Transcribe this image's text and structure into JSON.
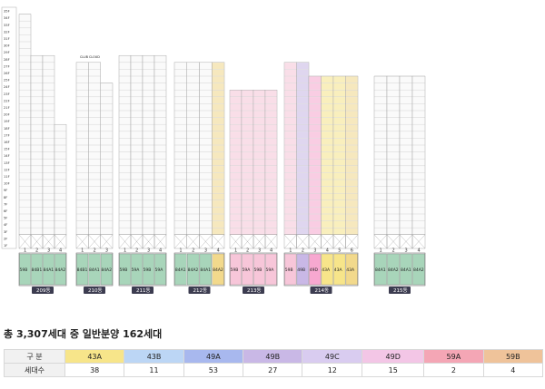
{
  "floors": [
    "35F",
    "34F",
    "33F",
    "32F",
    "31F",
    "30F",
    "29F",
    "28F",
    "27F",
    "26F",
    "25F",
    "24F",
    "23F",
    "22F",
    "21F",
    "20F",
    "19F",
    "18F",
    "17F",
    "16F",
    "15F",
    "14F",
    "13F",
    "12F",
    "11F",
    "10F",
    "9F",
    "8F",
    "7F",
    "6F",
    "5F",
    "4F",
    "3F",
    "2F",
    "1F"
  ],
  "club_label": "CLUB CLOUD",
  "buildings": [
    {
      "name": "209동",
      "color": "#a8d5ba",
      "units": [
        {
          "no": "1",
          "type": "59B",
          "cell": "#a8d5ba",
          "top": 34
        },
        {
          "no": "2",
          "type": "84B1",
          "cell": "#a8d5ba",
          "top": 28
        },
        {
          "no": "3",
          "type": "84A1",
          "cell": "#a8d5ba",
          "top": 28
        },
        {
          "no": "4",
          "type": "84A2",
          "cell": "#a8d5ba",
          "top": 18
        }
      ]
    },
    {
      "name": "210동",
      "color": "#a8d5ba",
      "units": [
        {
          "no": "1",
          "type": "84B1",
          "cell": "#a8d5ba",
          "top": 27
        },
        {
          "no": "2",
          "type": "84A1",
          "cell": "#a8d5ba",
          "top": 27
        },
        {
          "no": "3",
          "type": "84A2",
          "cell": "#a8d5ba",
          "top": 24
        }
      ]
    },
    {
      "name": "211동",
      "color": "#a8d5ba",
      "units": [
        {
          "no": "1",
          "type": "59B",
          "cell": "#a8d5ba",
          "top": 28
        },
        {
          "no": "2",
          "type": "59A",
          "cell": "#a8d5ba",
          "top": 28
        },
        {
          "no": "3",
          "type": "59B",
          "cell": "#a8d5ba",
          "top": 28
        },
        {
          "no": "4",
          "type": "59A",
          "cell": "#a8d5ba",
          "top": 28
        }
      ]
    },
    {
      "name": "212동",
      "color": "#a8d5ba",
      "units": [
        {
          "no": "1",
          "type": "84A1",
          "cell": "#a8d5ba",
          "top": 27
        },
        {
          "no": "2",
          "type": "84A2",
          "cell": "#a8d5ba",
          "top": 27
        },
        {
          "no": "3",
          "type": "84A1",
          "cell": "#a8d5ba",
          "top": 27
        },
        {
          "no": "4",
          "type": "84A2",
          "cell": "#f2d98c",
          "top": 27
        }
      ]
    },
    {
      "name": "213동",
      "color": "#a8d5ba",
      "units": [
        {
          "no": "1",
          "type": "59B",
          "cell": "#f7c6d9",
          "top": 23
        },
        {
          "no": "2",
          "type": "59A",
          "cell": "#f7c6d9",
          "top": 23
        },
        {
          "no": "3",
          "type": "59B",
          "cell": "#f7c6d9",
          "top": 23
        },
        {
          "no": "4",
          "type": "59A",
          "cell": "#f7c6d9",
          "top": 23
        }
      ]
    },
    {
      "name": "214동",
      "color": "#a8d5ba",
      "units": [
        {
          "no": "1",
          "type": "59B",
          "cell": "#f7c6d9",
          "top": 27
        },
        {
          "no": "2",
          "type": "49B",
          "cell": "#c9b8e6",
          "top": 27
        },
        {
          "no": "3",
          "type": "49D",
          "cell": "#f7a8d0",
          "top": 25
        },
        {
          "no": "4",
          "type": "43A",
          "cell": "#f7e58a",
          "top": 25
        },
        {
          "no": "5",
          "type": "43A",
          "cell": "#f7e58a",
          "top": 25
        },
        {
          "no": "6",
          "type": "43A",
          "cell": "#f2d98c",
          "top": 25
        }
      ]
    },
    {
      "name": "215동",
      "color": "#a8d5ba",
      "units": [
        {
          "no": "1",
          "type": "84A1",
          "cell": "#a8d5ba",
          "top": 25
        },
        {
          "no": "2",
          "type": "84A2",
          "cell": "#a8d5ba",
          "top": 25
        },
        {
          "no": "3",
          "type": "84A1",
          "cell": "#a8d5ba",
          "top": 25
        },
        {
          "no": "4",
          "type": "84A2",
          "cell": "#a8d5ba",
          "top": 25
        }
      ]
    }
  ],
  "summary": {
    "title": "총 3,307세대 중 일반분양 162세대",
    "header_label": "구 분",
    "count_label": "세대수",
    "types": [
      {
        "name": "43A",
        "count": "38",
        "color": "#f7e58a"
      },
      {
        "name": "43B",
        "count": "11",
        "color": "#bcd6f5"
      },
      {
        "name": "49A",
        "count": "53",
        "color": "#a8b8ee"
      },
      {
        "name": "49B",
        "count": "27",
        "color": "#c9b8e6"
      },
      {
        "name": "49C",
        "count": "12",
        "color": "#d9ccf0"
      },
      {
        "name": "49D",
        "count": "15",
        "color": "#f3c6e6"
      },
      {
        "name": "59A",
        "count": "2",
        "color": "#f4a6b5"
      },
      {
        "name": "59B",
        "count": "4",
        "color": "#efc39a"
      }
    ]
  }
}
